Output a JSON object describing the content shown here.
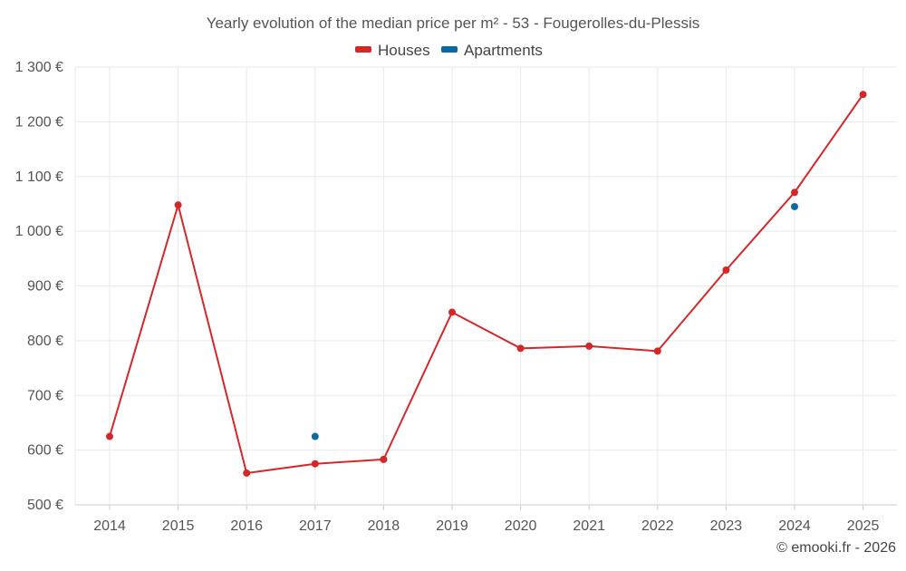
{
  "title": "Yearly evolution of the median price per m² - 53 - Fougerolles-du-Plessis",
  "credit": "© emooki.fr - 2026",
  "colors": {
    "houses": "#d62728",
    "apartments": "#0d6aa1"
  },
  "legend": [
    {
      "label": "Houses",
      "color": "#d62728"
    },
    {
      "label": "Apartments",
      "color": "#0d6aa1"
    }
  ],
  "chart_data": {
    "type": "line",
    "title": "Yearly evolution of the median price per m² - 53 - Fougerolles-du-Plessis",
    "xlabel": "",
    "ylabel": "",
    "categories": [
      "2014",
      "2015",
      "2016",
      "2017",
      "2018",
      "2019",
      "2020",
      "2021",
      "2022",
      "2023",
      "2024",
      "2025"
    ],
    "ylim": [
      500,
      1300
    ],
    "yticks": [
      500,
      600,
      700,
      800,
      900,
      1000,
      1100,
      1200,
      1300
    ],
    "ytick_labels": [
      "500 €",
      "600 €",
      "700 €",
      "800 €",
      "900 €",
      "1 000 €",
      "1 100 €",
      "1 200 €",
      "1 300 €"
    ],
    "grid": true,
    "legend_position": "top-center",
    "series": [
      {
        "name": "Houses",
        "color": "#d62728",
        "values": [
          625,
          1048,
          558,
          575,
          583,
          852,
          786,
          790,
          781,
          929,
          1071,
          1250
        ]
      },
      {
        "name": "Apartments",
        "color": "#0d6aa1",
        "values": [
          null,
          null,
          null,
          625,
          null,
          null,
          null,
          null,
          null,
          null,
          1045,
          null
        ]
      }
    ]
  }
}
